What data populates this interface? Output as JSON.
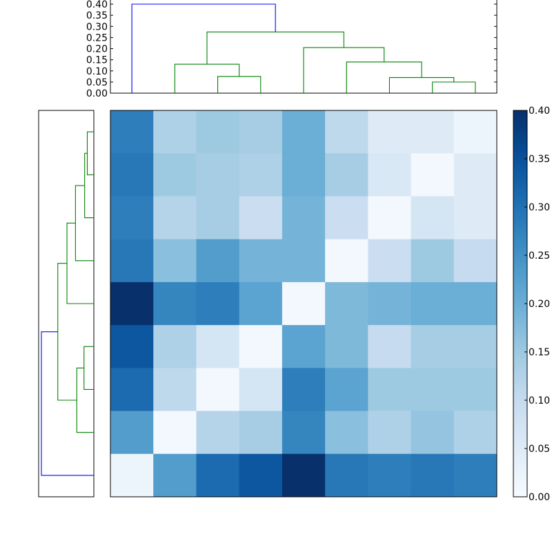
{
  "chart_data": [
    {
      "type": "dendrogram",
      "panel": "top",
      "orientation": "top",
      "yticks": [
        "0.00",
        "0.05",
        "0.10",
        "0.15",
        "0.20",
        "0.25",
        "0.30",
        "0.35",
        "0.40"
      ],
      "ylim": [
        0,
        0.4
      ],
      "leaf_count": 9,
      "link_color": "#008000",
      "root_color": "#0000ff",
      "merges": [
        {
          "left": 8,
          "right": 7,
          "height": 0.05
        },
        {
          "left": 6,
          "right": "m0",
          "height": 0.07
        },
        {
          "left": 5,
          "right": "m1",
          "height": 0.14
        },
        {
          "left": 4,
          "right": "m2",
          "height": 0.205
        },
        {
          "left": 2,
          "right": 3,
          "height": 0.075
        },
        {
          "left": 1,
          "right": "m4",
          "height": 0.13
        },
        {
          "left": "m5",
          "right": "m3",
          "height": 0.275
        },
        {
          "left": 0,
          "right": "m6",
          "height": 0.4,
          "color": "#0000ff"
        }
      ]
    },
    {
      "type": "dendrogram",
      "panel": "left",
      "orientation": "left",
      "leaf_count": 9,
      "link_color": "#008000",
      "root_color": "#0000ff",
      "merges": [
        {
          "left": 0,
          "right": 1,
          "height": 0.05
        },
        {
          "left": "m0",
          "right": 2,
          "height": 0.07
        },
        {
          "left": "m1",
          "right": 3,
          "height": 0.14
        },
        {
          "left": "m2",
          "right": 4,
          "height": 0.205
        },
        {
          "left": 5,
          "right": 6,
          "height": 0.075
        },
        {
          "left": "m4",
          "right": 7,
          "height": 0.13
        },
        {
          "left": "m3",
          "right": "m5",
          "height": 0.275
        },
        {
          "left": "m6",
          "right": 8,
          "height": 0.4,
          "color": "#0000ff"
        }
      ]
    },
    {
      "type": "heatmap",
      "colormap": "Blues",
      "vmin": 0,
      "vmax": 0.4,
      "colorbar_ticks": [
        "0.00",
        "0.05",
        "0.10",
        "0.15",
        "0.20",
        "0.25",
        "0.30",
        "0.35",
        "0.40"
      ],
      "rows": 9,
      "cols": 9,
      "values": [
        [
          0.28,
          0.13,
          0.15,
          0.14,
          0.2,
          0.11,
          0.05,
          0.05,
          0.02
        ],
        [
          0.29,
          0.15,
          0.14,
          0.13,
          0.2,
          0.14,
          0.06,
          0.01,
          0.05
        ],
        [
          0.28,
          0.12,
          0.14,
          0.09,
          0.19,
          0.09,
          0.01,
          0.07,
          0.05
        ],
        [
          0.29,
          0.17,
          0.23,
          0.19,
          0.19,
          0.01,
          0.09,
          0.15,
          0.1
        ],
        [
          0.4,
          0.27,
          0.28,
          0.22,
          0.01,
          0.18,
          0.19,
          0.2,
          0.2
        ],
        [
          0.34,
          0.13,
          0.07,
          0.01,
          0.22,
          0.18,
          0.1,
          0.14,
          0.14
        ],
        [
          0.31,
          0.11,
          0.01,
          0.07,
          0.28,
          0.22,
          0.15,
          0.15,
          0.15
        ],
        [
          0.23,
          0.01,
          0.12,
          0.14,
          0.27,
          0.17,
          0.13,
          0.16,
          0.13
        ],
        [
          0.02,
          0.23,
          0.31,
          0.34,
          0.4,
          0.29,
          0.28,
          0.29,
          0.28
        ]
      ]
    }
  ]
}
